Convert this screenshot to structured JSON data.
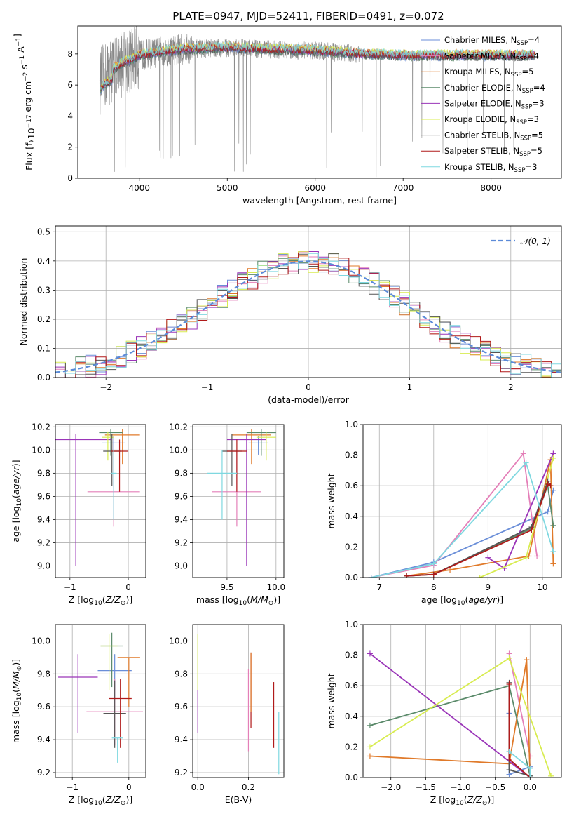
{
  "title": "PLATE=0947, MJD=52411, FIBERID=0491, z=0.072",
  "colors": {
    "chabrier_miles": "#6a8ed8",
    "salpeter_miles": "#e47fb8",
    "kroupa_miles": "#e07a2a",
    "chabrier_elodie": "#5a8a6a",
    "salpeter_elodie": "#9a35b8",
    "kroupa_elodie": "#d8ec50",
    "chabrier_stelib": "#555555",
    "salpeter_stelib": "#b01a1a",
    "kroupa_stelib": "#7fd8e0",
    "data": "#888888",
    "gaussian": "#5b8ad8"
  },
  "chart_data": [
    {
      "id": "spectrum",
      "type": "line",
      "title": "PLATE=0947, MJD=52411, FIBERID=0491, z=0.072",
      "xlabel": "wavelength [Angstrom, rest frame]",
      "ylabel": "Flux [fλ10⁻¹⁷ erg cm⁻² s⁻¹ A⁻¹]",
      "xlim": [
        3300,
        8800
      ],
      "ylim": [
        0,
        9.8
      ],
      "xticks": [
        4000,
        5000,
        6000,
        7000,
        8000
      ],
      "yticks": [
        0,
        2,
        4,
        6,
        8
      ],
      "legend_placement": "top-right",
      "legend": [
        "Chabrier MILES, N_SSP=4",
        "Salpeter MILES, N_SSP=4",
        "Kroupa MILES, N_SSP=5",
        "Chabrier ELODIE, N_SSP=4",
        "Salpeter ELODIE, N_SSP=3",
        "Kroupa ELODIE, N_SSP=3",
        "Chabrier STELIB, N_SSP=5",
        "Salpeter STELIB, N_SSP=5",
        "Kroupa STELIB, N_SSP=3"
      ],
      "continuum": [
        [
          3550,
          6.2
        ],
        [
          3600,
          6.6
        ],
        [
          3700,
          7.0
        ],
        [
          3800,
          7.4
        ],
        [
          3900,
          7.6
        ],
        [
          4000,
          7.9
        ],
        [
          4200,
          8.1
        ],
        [
          4500,
          8.3
        ],
        [
          5000,
          8.4
        ],
        [
          5500,
          8.3
        ],
        [
          6000,
          8.2
        ],
        [
          6500,
          8.0
        ],
        [
          7000,
          7.9
        ],
        [
          7500,
          7.9
        ],
        [
          8000,
          7.9
        ],
        [
          8500,
          7.9
        ]
      ]
    },
    {
      "id": "residuals",
      "type": "histogram",
      "xlabel": "(data-model)/error",
      "ylabel": "Normed distribution",
      "xlim": [
        -2.5,
        2.5
      ],
      "ylim": [
        0,
        0.52
      ],
      "xticks": [
        -2,
        -1,
        0,
        1,
        2
      ],
      "yticks": [
        0.0,
        0.1,
        0.2,
        0.3,
        0.4,
        0.5
      ],
      "grid": true,
      "legend_placement": "top-right",
      "legend": [
        "𝒩(0, 1)"
      ],
      "gaussian": {
        "mean": 0,
        "sigma": 1
      }
    },
    {
      "id": "age_vs_Z",
      "type": "errorbar",
      "xlabel": "Z [log10(Z/Z⊙)]",
      "ylabel": "age  [log10(age/yr)]",
      "xlim": [
        -1.25,
        0.3
      ],
      "ylim": [
        8.9,
        10.22
      ],
      "xticks": [
        -1,
        0
      ],
      "yticks": [
        9.0,
        9.2,
        9.4,
        9.6,
        9.8,
        10.0,
        10.2
      ],
      "grid": true,
      "points": [
        {
          "model": "chabrier_miles",
          "x": -0.25,
          "xerr": [
            0.2,
            0.2
          ],
          "y": 10.06,
          "yerr": [
            0.1,
            0.06
          ]
        },
        {
          "model": "salpeter_miles",
          "x": -0.25,
          "xerr": [
            0.45,
            0.45
          ],
          "y": 9.64,
          "yerr": [
            0.3,
            0.35
          ]
        },
        {
          "model": "kroupa_miles",
          "x": -0.1,
          "xerr": [
            0.3,
            0.3
          ],
          "y": 10.13,
          "yerr": [
            0.25,
            0.05
          ]
        },
        {
          "model": "chabrier_elodie",
          "x": -0.3,
          "xerr": [
            0.2,
            0.2
          ],
          "y": 10.15,
          "yerr": [
            0.2,
            0.03
          ]
        },
        {
          "model": "salpeter_elodie",
          "x": -0.9,
          "xerr": [
            0.6,
            0.6
          ],
          "y": 10.09,
          "yerr": [
            1.09,
            0.05
          ]
        },
        {
          "model": "kroupa_elodie",
          "x": -0.35,
          "xerr": [
            0.1,
            0.1
          ],
          "y": 10.11,
          "yerr": [
            0.2,
            0.05
          ]
        },
        {
          "model": "chabrier_stelib",
          "x": -0.28,
          "xerr": [
            0.15,
            0.15
          ],
          "y": 9.99,
          "yerr": [
            0.3,
            0.15
          ]
        },
        {
          "model": "salpeter_stelib",
          "x": -0.15,
          "xerr": [
            0.15,
            0.15
          ],
          "y": 9.99,
          "yerr": [
            0.35,
            0.1
          ]
        },
        {
          "model": "kroupa_stelib",
          "x": -0.25,
          "xerr": [
            0.05,
            0.05
          ],
          "y": 9.8,
          "yerr": [
            0.4,
            0.2
          ]
        }
      ]
    },
    {
      "id": "age_vs_mass",
      "type": "errorbar",
      "xlabel": "mass [log10(M/M⊙)]",
      "ylabel": "",
      "xlim": [
        9.15,
        10.08
      ],
      "ylim": [
        8.9,
        10.22
      ],
      "xticks": [
        9.5,
        10.0
      ],
      "yticks": [
        9.0,
        9.2,
        9.4,
        9.6,
        9.8,
        10.0,
        10.2
      ],
      "grid": true,
      "points": [
        {
          "model": "chabrier_miles",
          "x": 9.82,
          "xerr": [
            0.1,
            0.1
          ],
          "y": 10.06,
          "yerr": [
            0.1,
            0.06
          ]
        },
        {
          "model": "salpeter_miles",
          "x": 9.6,
          "xerr": [
            0.25,
            0.25
          ],
          "y": 9.64,
          "yerr": [
            0.3,
            0.35
          ]
        },
        {
          "model": "kroupa_miles",
          "x": 9.75,
          "xerr": [
            0.2,
            0.2
          ],
          "y": 10.13,
          "yerr": [
            0.25,
            0.05
          ]
        },
        {
          "model": "chabrier_elodie",
          "x": 9.85,
          "xerr": [
            0.15,
            0.15
          ],
          "y": 10.15,
          "yerr": [
            0.2,
            0.03
          ]
        },
        {
          "model": "salpeter_elodie",
          "x": 9.7,
          "xerr": [
            0.2,
            0.2
          ],
          "y": 10.09,
          "yerr": [
            1.09,
            0.05
          ]
        },
        {
          "model": "kroupa_elodie",
          "x": 9.9,
          "xerr": [
            0.1,
            0.1
          ],
          "y": 10.11,
          "yerr": [
            0.2,
            0.05
          ]
        },
        {
          "model": "chabrier_stelib",
          "x": 9.55,
          "xerr": [
            0.1,
            0.1
          ],
          "y": 9.99,
          "yerr": [
            0.3,
            0.15
          ]
        },
        {
          "model": "salpeter_stelib",
          "x": 9.6,
          "xerr": [
            0.1,
            0.1
          ],
          "y": 9.99,
          "yerr": [
            0.35,
            0.1
          ]
        },
        {
          "model": "kroupa_stelib",
          "x": 9.45,
          "xerr": [
            0.15,
            0.15
          ],
          "y": 9.8,
          "yerr": [
            0.4,
            0.2
          ]
        }
      ]
    },
    {
      "id": "weight_vs_age",
      "type": "line",
      "xlabel": "age  [log10(age/yr)]",
      "ylabel": "mass weight",
      "xlim": [
        6.7,
        10.35
      ],
      "ylim": [
        0,
        1.0
      ],
      "xticks": [
        7,
        8,
        9,
        10
      ],
      "yticks": [
        0.0,
        0.2,
        0.4,
        0.6,
        0.8,
        1.0
      ],
      "grid": true,
      "series": [
        {
          "model": "chabrier_miles",
          "points": [
            [
              6.85,
              0.0
            ],
            [
              8.0,
              0.1
            ],
            [
              10.1,
              0.43
            ],
            [
              10.2,
              0.57
            ]
          ]
        },
        {
          "model": "salpeter_miles",
          "points": [
            [
              6.85,
              0.0
            ],
            [
              8.0,
              0.08
            ],
            [
              9.65,
              0.81
            ],
            [
              9.9,
              0.14
            ]
          ]
        },
        {
          "model": "kroupa_miles",
          "points": [
            [
              7.5,
              0.01
            ],
            [
              8.3,
              0.05
            ],
            [
              9.75,
              0.14
            ],
            [
              10.15,
              0.77
            ],
            [
              10.2,
              0.09
            ]
          ]
        },
        {
          "model": "chabrier_elodie",
          "points": [
            [
              7.5,
              0.01
            ],
            [
              8.0,
              0.02
            ],
            [
              9.8,
              0.32
            ],
            [
              10.1,
              0.6
            ],
            [
              10.2,
              0.34
            ]
          ]
        },
        {
          "model": "salpeter_elodie",
          "points": [
            [
              9.0,
              0.13
            ],
            [
              9.3,
              0.06
            ],
            [
              10.2,
              0.81
            ]
          ]
        },
        {
          "model": "kroupa_elodie",
          "points": [
            [
              8.85,
              0.0
            ],
            [
              9.7,
              0.13
            ],
            [
              10.2,
              0.78
            ]
          ]
        },
        {
          "model": "chabrier_stelib",
          "points": [
            [
              7.5,
              0.01
            ],
            [
              8.0,
              0.02
            ],
            [
              9.8,
              0.33
            ],
            [
              10.1,
              0.63
            ],
            [
              10.15,
              0.6
            ]
          ]
        },
        {
          "model": "salpeter_stelib",
          "points": [
            [
              7.5,
              0.01
            ],
            [
              8.0,
              0.02
            ],
            [
              9.8,
              0.31
            ],
            [
              10.1,
              0.61
            ],
            [
              10.15,
              0.6
            ]
          ]
        },
        {
          "model": "kroupa_stelib",
          "points": [
            [
              6.85,
              0.0
            ],
            [
              8.0,
              0.09
            ],
            [
              9.7,
              0.75
            ],
            [
              10.2,
              0.17
            ]
          ]
        }
      ]
    },
    {
      "id": "mass_vs_Z",
      "type": "errorbar",
      "xlabel": "Z [log10(Z/Z⊙)]",
      "ylabel": "mass [log10(M/M⊙)]",
      "xlim": [
        -1.3,
        0.3
      ],
      "ylim": [
        9.17,
        10.1
      ],
      "xticks": [
        -1,
        0
      ],
      "yticks": [
        9.2,
        9.4,
        9.6,
        9.8,
        10.0
      ],
      "grid": true,
      "points": [
        {
          "model": "chabrier_miles",
          "x": -0.25,
          "xerr": [
            0.3,
            0.3
          ],
          "y": 9.82,
          "yerr": [
            0.12,
            0.1
          ]
        },
        {
          "model": "salpeter_miles",
          "x": -0.25,
          "xerr": [
            0.5,
            0.5
          ],
          "y": 9.57,
          "yerr": [
            0.2,
            0.2
          ]
        },
        {
          "model": "kroupa_miles",
          "x": 0.0,
          "xerr": [
            0.2,
            0.2
          ],
          "y": 9.9,
          "yerr": [
            0.3,
            0.0
          ]
        },
        {
          "model": "chabrier_elodie",
          "x": -0.3,
          "xerr": [
            0.2,
            0.2
          ],
          "y": 9.97,
          "yerr": [
            0.25,
            0.08
          ]
        },
        {
          "model": "salpeter_elodie",
          "x": -0.9,
          "xerr": [
            0.35,
            0.35
          ],
          "y": 9.78,
          "yerr": [
            0.34,
            0.14
          ]
        },
        {
          "model": "kroupa_elodie",
          "x": -0.35,
          "xerr": [
            0.15,
            0.15
          ],
          "y": 9.97,
          "yerr": [
            0.27,
            0.07
          ]
        },
        {
          "model": "chabrier_stelib",
          "x": -0.25,
          "xerr": [
            0.2,
            0.2
          ],
          "y": 9.56,
          "yerr": [
            0.21,
            0.2
          ]
        },
        {
          "model": "salpeter_stelib",
          "x": -0.15,
          "xerr": [
            0.2,
            0.2
          ],
          "y": 9.65,
          "yerr": [
            0.3,
            0.12
          ]
        },
        {
          "model": "kroupa_stelib",
          "x": -0.2,
          "xerr": [
            0.1,
            0.1
          ],
          "y": 9.41,
          "yerr": [
            0.15,
            0.0
          ]
        }
      ]
    },
    {
      "id": "mass_vs_ebv",
      "type": "errorbar",
      "xlabel": "E(B-V)",
      "ylabel": "",
      "xlim": [
        -0.02,
        0.34
      ],
      "ylim": [
        9.17,
        10.1
      ],
      "xticks": [
        0.0,
        0.2
      ],
      "yticks": [
        9.2,
        9.4,
        9.6,
        9.8,
        10.0
      ],
      "grid": true,
      "points": [
        {
          "model": "kroupa_elodie",
          "x": 0.0,
          "y": 9.87,
          "yerr": [
            0.17,
            0.17
          ]
        },
        {
          "model": "salpeter_elodie",
          "x": 0.0,
          "y": 9.57,
          "yerr": [
            0.13,
            0.13
          ]
        },
        {
          "model": "salpeter_miles",
          "x": 0.2,
          "y": 9.58,
          "yerr": [
            0.25,
            0.25
          ]
        },
        {
          "model": "salpeter_stelib",
          "x": 0.21,
          "y": 9.7,
          "yerr": [
            0.23,
            0.23
          ]
        },
        {
          "model": "kroupa_miles",
          "x": 0.21,
          "y": 9.75,
          "yerr": [
            0.18,
            0.18
          ]
        },
        {
          "model": "salpeter_stelib",
          "x": 0.3,
          "y": 9.55,
          "yerr": [
            0.2,
            0.2
          ]
        },
        {
          "model": "kroupa_stelib",
          "x": 0.32,
          "y": 9.38,
          "yerr": [
            0.19,
            0.19
          ]
        }
      ]
    },
    {
      "id": "weight_vs_Z",
      "type": "line",
      "xlabel": "Z [log10(Z/Z⊙)]",
      "ylabel": "mass weight",
      "xlim": [
        -2.4,
        0.45
      ],
      "ylim": [
        0,
        1.0
      ],
      "xticks": [
        -2.0,
        -1.5,
        -1.0,
        -0.5,
        0.0
      ],
      "yticks": [
        0.0,
        0.2,
        0.4,
        0.6,
        0.8,
        1.0
      ],
      "grid": true,
      "series": [
        {
          "model": "chabrier_miles",
          "points": [
            [
              -0.3,
              0.42
            ],
            [
              -0.3,
              0.02
            ],
            [
              0.0,
              0.07
            ]
          ]
        },
        {
          "model": "salpeter_miles",
          "points": [
            [
              -0.3,
              0.81
            ],
            [
              0.0,
              0.14
            ]
          ]
        },
        {
          "model": "kroupa_miles",
          "points": [
            [
              -2.3,
              0.14
            ],
            [
              -0.3,
              0.09
            ],
            [
              -0.05,
              0.77
            ],
            [
              0.0,
              0.0
            ]
          ]
        },
        {
          "model": "chabrier_elodie",
          "points": [
            [
              -2.3,
              0.34
            ],
            [
              -0.3,
              0.6
            ],
            [
              0.0,
              0.01
            ]
          ]
        },
        {
          "model": "salpeter_elodie",
          "points": [
            [
              -2.3,
              0.81
            ],
            [
              0.0,
              0.0
            ]
          ]
        },
        {
          "model": "kroupa_elodie",
          "points": [
            [
              -2.3,
              0.2
            ],
            [
              -0.3,
              0.78
            ],
            [
              0.3,
              0.01
            ]
          ]
        },
        {
          "model": "chabrier_stelib",
          "points": [
            [
              -0.3,
              0.62
            ],
            [
              -0.3,
              0.05
            ],
            [
              0.0,
              0.01
            ]
          ]
        },
        {
          "model": "salpeter_stelib",
          "points": [
            [
              -0.3,
              0.61
            ],
            [
              -0.3,
              0.12
            ],
            [
              0.0,
              0.0
            ]
          ]
        },
        {
          "model": "kroupa_stelib",
          "points": [
            [
              -0.3,
              0.17
            ],
            [
              0.0,
              0.06
            ],
            [
              0.0,
              0.0
            ]
          ]
        }
      ]
    }
  ]
}
